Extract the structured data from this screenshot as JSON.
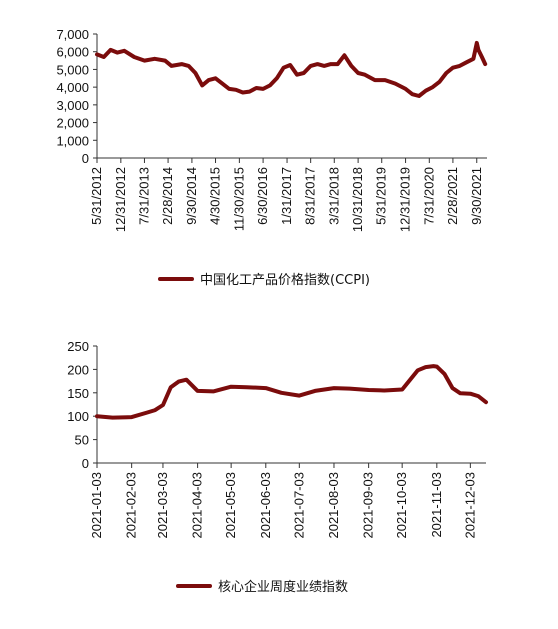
{
  "colors": {
    "series": "#7b0c0c",
    "axis": "#333333",
    "text": "#111111"
  },
  "chart_data": [
    {
      "type": "line",
      "title": "",
      "xlabel": "",
      "ylabel": "",
      "ylim": [
        0,
        7000
      ],
      "yticks": [
        "7,000",
        "6,000",
        "5,000",
        "4,000",
        "3,000",
        "2,000",
        "1,000",
        "0"
      ],
      "ytick_values": [
        7000,
        6000,
        5000,
        4000,
        3000,
        2000,
        1000,
        0
      ],
      "xlim": [
        "2012-05-31",
        "2021-12-31"
      ],
      "xticks": [
        "5/31/2012",
        "12/31/2012",
        "7/31/2013",
        "2/28/2014",
        "9/30/2014",
        "4/30/2015",
        "11/30/2015",
        "6/30/2016",
        "1/31/2017",
        "8/31/2017",
        "3/31/2018",
        "10/31/2018",
        "5/31/2019",
        "12/31/2019",
        "7/31/2020",
        "2/28/2021",
        "9/30/2021"
      ],
      "xtick_dates": [
        "2012-05-31",
        "2012-12-31",
        "2013-07-31",
        "2014-02-28",
        "2014-09-30",
        "2015-04-30",
        "2015-11-30",
        "2016-06-30",
        "2017-01-31",
        "2017-08-31",
        "2018-03-31",
        "2018-10-31",
        "2019-05-31",
        "2019-12-31",
        "2020-07-31",
        "2021-02-28",
        "2021-09-30"
      ],
      "grid": false,
      "legend": "bottom-center",
      "series": [
        {
          "name": "中国化工产品价格指数(CCPI)",
          "x": [
            "2012-05-31",
            "2012-07-31",
            "2012-09-30",
            "2012-11-30",
            "2013-01-31",
            "2013-04-30",
            "2013-07-31",
            "2013-10-31",
            "2014-01-31",
            "2014-03-31",
            "2014-06-30",
            "2014-08-31",
            "2014-10-31",
            "2014-12-31",
            "2015-02-28",
            "2015-04-30",
            "2015-06-30",
            "2015-08-31",
            "2015-10-31",
            "2015-12-31",
            "2016-02-29",
            "2016-04-30",
            "2016-06-30",
            "2016-08-31",
            "2016-10-31",
            "2016-12-31",
            "2017-02-28",
            "2017-04-30",
            "2017-06-30",
            "2017-08-31",
            "2017-10-31",
            "2017-12-31",
            "2018-02-28",
            "2018-04-30",
            "2018-06-30",
            "2018-08-31",
            "2018-10-31",
            "2018-12-31",
            "2019-03-31",
            "2019-06-30",
            "2019-09-30",
            "2019-12-31",
            "2020-02-29",
            "2020-04-30",
            "2020-06-30",
            "2020-08-31",
            "2020-10-31",
            "2020-12-31",
            "2021-02-28",
            "2021-04-30",
            "2021-06-30",
            "2021-08-31",
            "2021-09-30",
            "2021-10-15",
            "2021-11-15",
            "2021-12-15"
          ],
          "y": [
            5850,
            5700,
            6100,
            5950,
            6050,
            5700,
            5500,
            5600,
            5500,
            5200,
            5300,
            5200,
            4800,
            4100,
            4400,
            4500,
            4200,
            3900,
            3850,
            3700,
            3750,
            3950,
            3900,
            4100,
            4500,
            5100,
            5250,
            4700,
            4800,
            5200,
            5300,
            5200,
            5300,
            5300,
            5800,
            5200,
            4800,
            4700,
            4400,
            4400,
            4200,
            3900,
            3600,
            3500,
            3800,
            4000,
            4300,
            4800,
            5100,
            5200,
            5400,
            5600,
            6500,
            6100,
            5700,
            5300
          ]
        }
      ]
    },
    {
      "type": "line",
      "title": "",
      "xlabel": "",
      "ylabel": "",
      "ylim": [
        0,
        250
      ],
      "yticks": [
        "250",
        "200",
        "150",
        "100",
        "50",
        "0"
      ],
      "ytick_values": [
        250,
        200,
        150,
        100,
        50,
        0
      ],
      "xlim": [
        "2021-01-03",
        "2021-12-17"
      ],
      "xticks": [
        "2021-01-03",
        "2021-02-03",
        "2021-03-03",
        "2021-04-03",
        "2021-05-03",
        "2021-06-03",
        "2021-07-03",
        "2021-08-03",
        "2021-09-03",
        "2021-10-03",
        "2021-11-03",
        "2021-12-03"
      ],
      "grid": false,
      "legend": "bottom-center",
      "series": [
        {
          "name": "核心企业周度业绩指数",
          "x": [
            "2021-01-03",
            "2021-01-17",
            "2021-02-03",
            "2021-02-17",
            "2021-02-24",
            "2021-03-03",
            "2021-03-10",
            "2021-03-17",
            "2021-03-24",
            "2021-04-03",
            "2021-04-17",
            "2021-05-03",
            "2021-05-17",
            "2021-06-03",
            "2021-06-17",
            "2021-07-03",
            "2021-07-17",
            "2021-08-03",
            "2021-08-17",
            "2021-09-03",
            "2021-09-17",
            "2021-10-03",
            "2021-10-17",
            "2021-10-24",
            "2021-10-31",
            "2021-11-03",
            "2021-11-10",
            "2021-11-17",
            "2021-11-24",
            "2021-12-03",
            "2021-12-10",
            "2021-12-17"
          ],
          "y": [
            100,
            97,
            98,
            108,
            113,
            124,
            162,
            174,
            178,
            154,
            153,
            163,
            162,
            160,
            150,
            144,
            154,
            160,
            159,
            156,
            155,
            157,
            198,
            205,
            207,
            206,
            190,
            160,
            149,
            148,
            143,
            130
          ]
        }
      ]
    }
  ]
}
